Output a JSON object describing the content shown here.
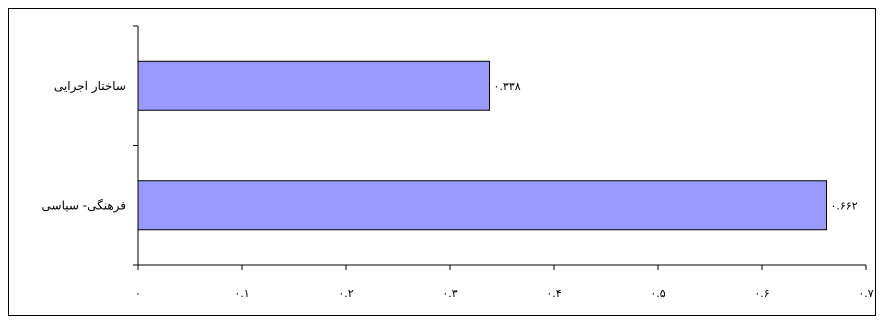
{
  "chart_data": {
    "type": "bar",
    "orientation": "horizontal",
    "categories": [
      "ساختار اجرایی",
      "فرهنگی- سیاسی"
    ],
    "values": [
      0.338,
      0.662
    ],
    "data_labels": [
      "۰.۳۳۸",
      "۰.۶۶۲"
    ],
    "xlim": [
      0,
      0.7
    ],
    "xticks": [
      "۰",
      "۰.۱",
      "۰.۲",
      "۰.۳",
      "۰.۴",
      "۰.۵",
      "۰.۶",
      "۰.۷"
    ],
    "bar_color": "#9999ff",
    "grid": false,
    "legend": "none",
    "title": "",
    "xlabel": "",
    "ylabel": ""
  }
}
